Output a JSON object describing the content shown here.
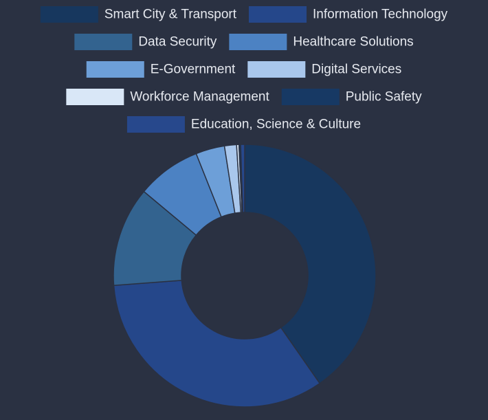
{
  "chart_data": {
    "type": "pie",
    "title": "",
    "legend_position": "top-center",
    "background": "#2a3142",
    "legend_text_color": "#e6e9ef",
    "slice_border_color": "#2a3142",
    "slices": [
      {
        "label": "Smart City & Transport",
        "value": 40.8,
        "color": "#17375e"
      },
      {
        "label": "Information Technology",
        "value": 33.9,
        "color": "#25478a"
      },
      {
        "label": "Data Security",
        "value": 12.4,
        "color": "#33638f"
      },
      {
        "label": "Healthcare Solutions",
        "value": 8.0,
        "color": "#4c82c3"
      },
      {
        "label": "E-Government",
        "value": 3.6,
        "color": "#6d9fd8"
      },
      {
        "label": "Digital Services",
        "value": 1.5,
        "color": "#a9c7ec"
      },
      {
        "label": "Workforce Management",
        "value": 0.3,
        "color": "#d9e7f7"
      },
      {
        "label": "Public Safety",
        "value": 0.2,
        "color": "#173964"
      },
      {
        "label": "Education, Science & Culture",
        "value": 0.5,
        "color": "#27488c"
      }
    ]
  }
}
